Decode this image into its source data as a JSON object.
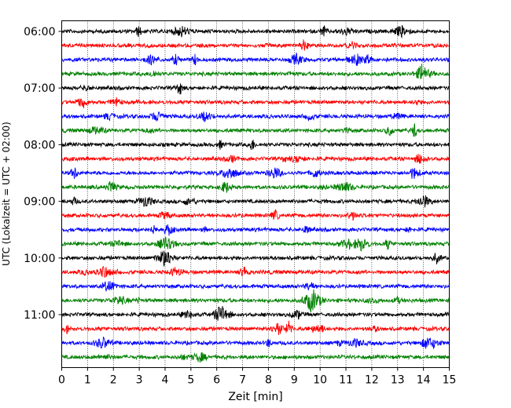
{
  "chart_data": {
    "type": "line",
    "title": "",
    "xlabel": "Zeit  [min]",
    "ylabel": "UTC (Lokalzeit = UTC + 02:00)",
    "xlim": [
      0,
      15
    ],
    "x_ticks": [
      0,
      1,
      2,
      3,
      4,
      5,
      6,
      7,
      8,
      9,
      10,
      11,
      12,
      13,
      14,
      15
    ],
    "y_tick_labels": [
      "06:00",
      "07:00",
      "08:00",
      "09:00",
      "10:00",
      "11:00"
    ],
    "trace_colors": [
      "#000000",
      "#ff0000",
      "#0000ff",
      "#008000"
    ],
    "trace_count": 24,
    "grid": {
      "vertical": true,
      "style": "dotted"
    },
    "legend": "none"
  }
}
